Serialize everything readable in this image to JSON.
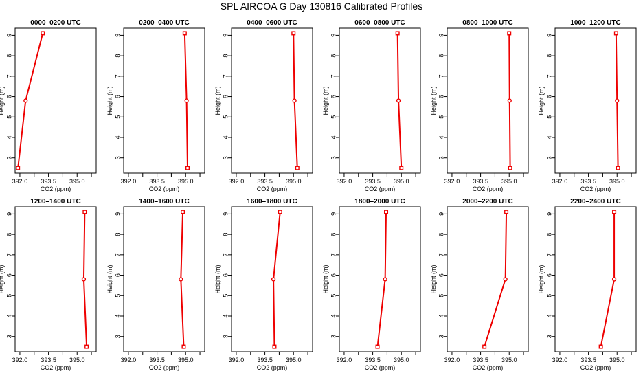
{
  "page": {
    "title": "SPL AIRCOA G  Day 130816  Calibrated Profiles"
  },
  "colors": {
    "series": "#ee0000",
    "axis": "#000000",
    "background": "#ffffff"
  },
  "axes": {
    "xlabel": "CO2 (ppm)",
    "ylabel": "Height (m)",
    "xlim": [
      391.75,
      396.0
    ],
    "ylim": [
      2.25,
      9.35
    ],
    "xticks": [
      392.0,
      393.5,
      395.0
    ],
    "xtick_labels": [
      "392.0",
      "393.5",
      "395.0"
    ],
    "xtick_minor": [
      392.75,
      394.25,
      395.75
    ],
    "yticks": [
      3,
      4,
      5,
      6,
      7,
      8,
      9
    ],
    "ytick_labels": [
      "3",
      "4",
      "5",
      "6",
      "7",
      "8",
      "9"
    ]
  },
  "chart_data": [
    {
      "type": "line",
      "title": "0000–0200 UTC",
      "x": [
        393.2,
        392.3,
        391.9
      ],
      "y": [
        9.1,
        5.8,
        2.5
      ]
    },
    {
      "type": "line",
      "title": "0200–0400 UTC",
      "x": [
        394.95,
        395.05,
        395.1
      ],
      "y": [
        9.1,
        5.8,
        2.5
      ]
    },
    {
      "type": "line",
      "title": "0400–0600 UTC",
      "x": [
        395.0,
        395.05,
        395.2
      ],
      "y": [
        9.1,
        5.8,
        2.5
      ]
    },
    {
      "type": "line",
      "title": "0600–0800 UTC",
      "x": [
        394.8,
        394.85,
        395.0
      ],
      "y": [
        9.1,
        5.8,
        2.5
      ]
    },
    {
      "type": "line",
      "title": "0800–1000 UTC",
      "x": [
        395.0,
        395.02,
        395.05
      ],
      "y": [
        9.1,
        5.8,
        2.5
      ]
    },
    {
      "type": "line",
      "title": "1000–1200 UTC",
      "x": [
        394.95,
        395.0,
        395.05
      ],
      "y": [
        9.1,
        5.8,
        2.5
      ]
    },
    {
      "type": "line",
      "title": "1200–1400 UTC",
      "x": [
        395.4,
        395.35,
        395.5
      ],
      "y": [
        9.1,
        5.8,
        2.5
      ]
    },
    {
      "type": "line",
      "title": "1400–1600 UTC",
      "x": [
        394.85,
        394.75,
        394.9
      ],
      "y": [
        9.1,
        5.8,
        2.5
      ]
    },
    {
      "type": "line",
      "title": "1600–1800 UTC",
      "x": [
        394.3,
        393.95,
        394.0
      ],
      "y": [
        9.1,
        5.8,
        2.5
      ]
    },
    {
      "type": "line",
      "title": "1800–2000 UTC",
      "x": [
        394.2,
        394.15,
        393.75
      ],
      "y": [
        9.1,
        5.8,
        2.5
      ]
    },
    {
      "type": "line",
      "title": "2000–2200 UTC",
      "x": [
        394.85,
        394.8,
        393.7
      ],
      "y": [
        9.1,
        5.8,
        2.5
      ]
    },
    {
      "type": "line",
      "title": "2200–2400 UTC",
      "x": [
        394.85,
        394.85,
        394.15
      ],
      "y": [
        9.1,
        5.8,
        2.5
      ]
    }
  ]
}
